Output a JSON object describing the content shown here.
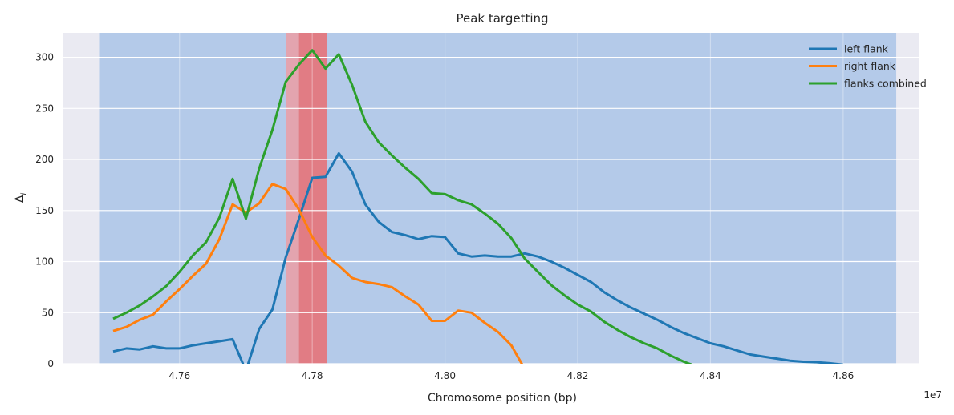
{
  "chart_data": {
    "type": "line",
    "title": "Peak targetting",
    "xlabel": "Chromosome position (bp)",
    "ylabel": "Δ",
    "ylabel_subscript": "i",
    "x_scale_label": "1e7",
    "xlim": [
      4.7425,
      4.8715
    ],
    "ylim": [
      0,
      324
    ],
    "xticks": [
      4.76,
      4.78,
      4.8,
      4.82,
      4.84,
      4.86
    ],
    "xtick_labels": [
      "4.76",
      "4.78",
      "4.80",
      "4.82",
      "4.84",
      "4.86"
    ],
    "yticks": [
      0,
      50,
      100,
      150,
      200,
      250,
      300
    ],
    "ytick_labels": [
      "0",
      "50",
      "100",
      "150",
      "200",
      "250",
      "300"
    ],
    "grid": true,
    "legend_position": "top-right",
    "shaded_regions": [
      {
        "x0": 4.748,
        "x1": 4.868,
        "color": "#aec7e8"
      },
      {
        "x0": 4.776,
        "x1": 4.7822,
        "color": "#e8a0a8"
      },
      {
        "x0": 4.778,
        "x1": 4.7822,
        "color": "#e0787f"
      }
    ],
    "series": [
      {
        "name": "left flank",
        "color": "#1f77b4",
        "x": [
          4.75,
          4.752,
          4.754,
          4.756,
          4.758,
          4.76,
          4.762,
          4.764,
          4.766,
          4.768,
          4.77,
          4.772,
          4.774,
          4.776,
          4.778,
          4.78,
          4.782,
          4.784,
          4.786,
          4.788,
          4.79,
          4.792,
          4.794,
          4.796,
          4.798,
          4.8,
          4.802,
          4.804,
          4.806,
          4.808,
          4.81,
          4.812,
          4.814,
          4.816,
          4.818,
          4.82,
          4.822,
          4.824,
          4.826,
          4.828,
          4.83,
          4.832,
          4.834,
          4.836,
          4.838,
          4.84,
          4.842,
          4.844,
          4.846,
          4.848,
          4.85,
          4.852,
          4.854,
          4.856,
          4.858,
          4.86
        ],
        "y": [
          12,
          15,
          14,
          17,
          15,
          15,
          18,
          20,
          22,
          24,
          -7,
          34,
          53,
          104,
          142,
          182,
          183,
          206,
          188,
          156,
          139,
          129,
          126,
          122,
          125,
          124,
          108,
          105,
          106,
          105,
          105,
          108,
          105,
          100,
          94,
          87,
          80,
          70,
          62,
          55,
          49,
          43,
          36,
          30,
          25,
          20,
          17,
          13,
          9,
          7,
          5,
          3,
          2,
          1.5,
          0.5,
          -1
        ]
      },
      {
        "name": "right flank",
        "color": "#ff7f0e",
        "x": [
          4.75,
          4.752,
          4.754,
          4.756,
          4.758,
          4.76,
          4.762,
          4.764,
          4.766,
          4.768,
          4.77,
          4.772,
          4.774,
          4.776,
          4.778,
          4.78,
          4.782,
          4.784,
          4.786,
          4.788,
          4.79,
          4.792,
          4.794,
          4.796,
          4.798,
          4.8,
          4.802,
          4.804,
          4.806,
          4.808,
          4.81,
          4.812
        ],
        "y": [
          32,
          36,
          43,
          48,
          61,
          73,
          86,
          98,
          122,
          156,
          148,
          157,
          176,
          171,
          151,
          124,
          106,
          96,
          84,
          80,
          78,
          75,
          66,
          58,
          42,
          42,
          52,
          50,
          40,
          31,
          18,
          -5
        ]
      },
      {
        "name": "flanks combined",
        "color": "#2ca02c",
        "x": [
          4.75,
          4.752,
          4.754,
          4.756,
          4.758,
          4.76,
          4.762,
          4.764,
          4.766,
          4.768,
          4.77,
          4.772,
          4.774,
          4.776,
          4.778,
          4.78,
          4.782,
          4.784,
          4.786,
          4.788,
          4.79,
          4.792,
          4.794,
          4.796,
          4.798,
          4.8,
          4.802,
          4.804,
          4.806,
          4.808,
          4.81,
          4.812,
          4.814,
          4.816,
          4.818,
          4.82,
          4.822,
          4.824,
          4.826,
          4.828,
          4.83,
          4.832,
          4.834,
          4.836,
          4.838
        ],
        "y": [
          44,
          50,
          57,
          66,
          76,
          90,
          106,
          119,
          143,
          181,
          142,
          191,
          229,
          276,
          293,
          307,
          289,
          303,
          273,
          237,
          217,
          204,
          192,
          181,
          167,
          166,
          160,
          156,
          147,
          137,
          123,
          103,
          90,
          77,
          67,
          58,
          51,
          41,
          33,
          26,
          20,
          15,
          8,
          2,
          -3
        ]
      }
    ]
  }
}
